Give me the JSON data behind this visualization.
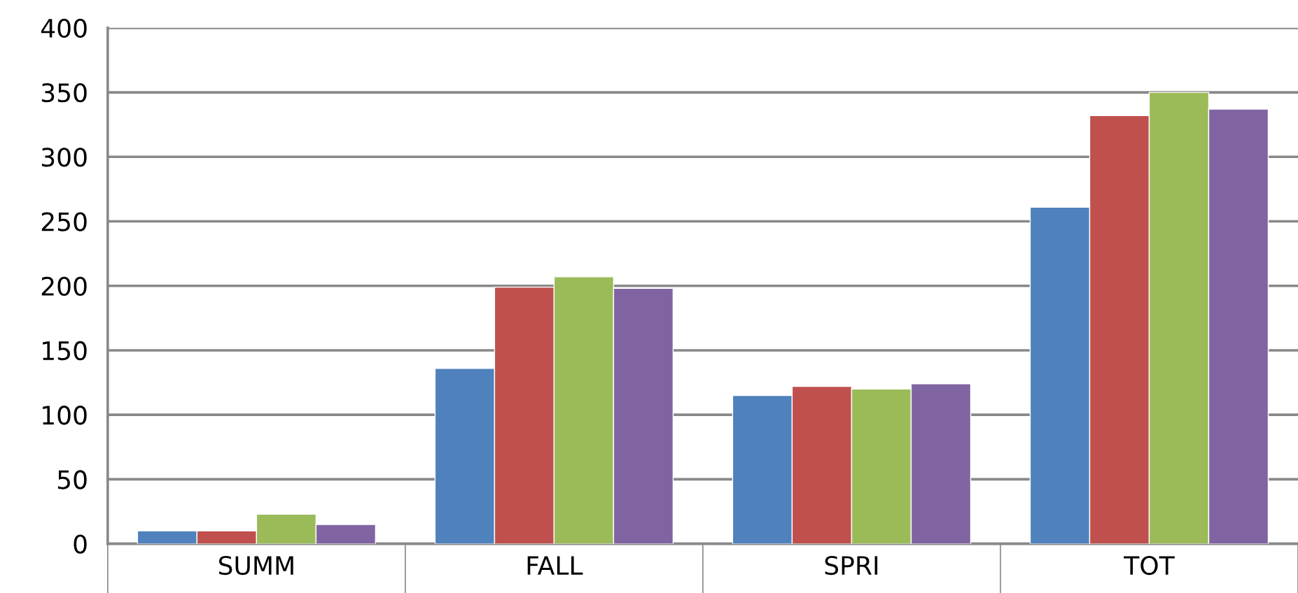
{
  "chart_data": {
    "type": "bar",
    "categories": [
      "SUMM",
      "FALL",
      "SPRI",
      "TOT"
    ],
    "series": [
      {
        "color": "#4f81bd",
        "values": [
          10,
          136,
          115,
          261
        ]
      },
      {
        "color": "#c0504d",
        "values": [
          10,
          199,
          122,
          332
        ]
      },
      {
        "color": "#9bbb59",
        "values": [
          23,
          207,
          120,
          350
        ]
      },
      {
        "color": "#8064a2",
        "values": [
          15,
          198,
          124,
          337
        ]
      }
    ],
    "ylim": [
      0,
      400
    ],
    "yticks": [
      0,
      50,
      100,
      150,
      200,
      250,
      300,
      350,
      400
    ],
    "grid": "y"
  }
}
